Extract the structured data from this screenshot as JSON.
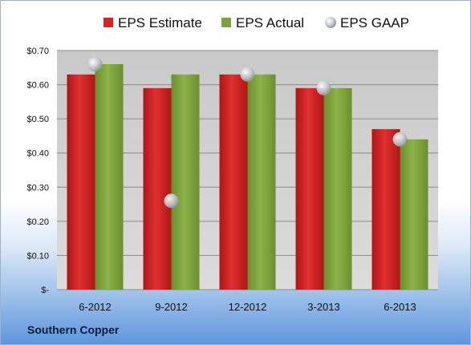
{
  "company": "Southern Copper",
  "colors": {
    "estimate": "#d42424",
    "actual": "#7ea43e",
    "gaap": "#c3c8cf",
    "plot_bg": "#d0d0d0"
  },
  "chart_data": {
    "type": "bar",
    "categories": [
      "6-2012",
      "9-2012",
      "12-2012",
      "3-2013",
      "6-2013"
    ],
    "series": [
      {
        "name": "EPS Estimate",
        "type": "bar",
        "values": [
          0.63,
          0.59,
          0.63,
          0.59,
          0.47
        ]
      },
      {
        "name": "EPS Actual",
        "type": "bar",
        "values": [
          0.66,
          0.63,
          0.63,
          0.59,
          0.44
        ]
      },
      {
        "name": "EPS GAAP",
        "type": "marker",
        "values": [
          0.66,
          0.26,
          0.63,
          0.59,
          0.44
        ]
      }
    ],
    "ylim": [
      0,
      0.7
    ],
    "y_ticks": [
      0,
      0.1,
      0.2,
      0.3,
      0.4,
      0.5,
      0.6,
      0.7
    ],
    "y_tick_labels": [
      "$-",
      "$0.10",
      "$0.20",
      "$0.30",
      "$0.40",
      "$0.50",
      "$0.60",
      "$0.70"
    ],
    "grid": true,
    "legend_position": "top"
  }
}
